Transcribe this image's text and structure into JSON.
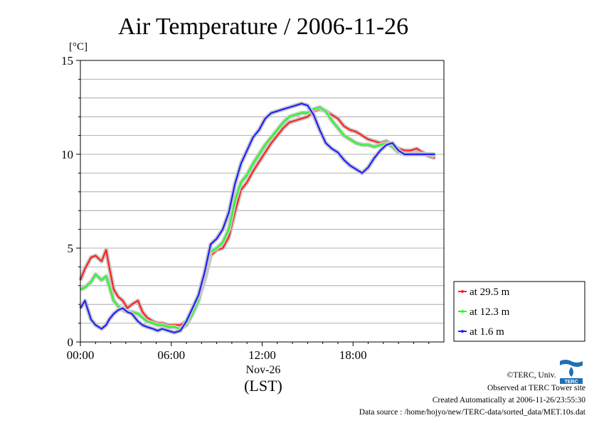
{
  "chart_data": {
    "type": "line",
    "title": "Air Temperature / 2006-11-26",
    "ylabel": "[°C]",
    "xlabel": "(LST)",
    "x_date_label": "Nov-26",
    "ylim": [
      0,
      15
    ],
    "yticks": [
      0,
      5,
      10,
      15
    ],
    "xlim": [
      "00:00",
      "24:00"
    ],
    "xticks": [
      "00:00",
      "06:00",
      "12:00",
      "18:00"
    ],
    "grid": true,
    "legend_position": "right",
    "x_unit": "hour",
    "series": [
      {
        "name": "at 29.5 m",
        "color": "#ff2020",
        "x": [
          0,
          0.3,
          0.7,
          1.0,
          1.4,
          1.7,
          1.9,
          2.2,
          2.5,
          2.8,
          3.1,
          3.4,
          3.8,
          4.1,
          4.4,
          4.8,
          5.1,
          5.4,
          5.8,
          6.2,
          6.6,
          7.0,
          7.4,
          7.8,
          8.2,
          8.6,
          9.0,
          9.4,
          9.8,
          10.2,
          10.6,
          11.0,
          11.4,
          11.8,
          12.2,
          12.6,
          13.0,
          13.4,
          13.8,
          14.2,
          14.6,
          15.0,
          15.4,
          15.8,
          16.2,
          16.6,
          17.0,
          17.4,
          17.8,
          18.2,
          18.6,
          19.0,
          19.4,
          19.8,
          20.2,
          20.6,
          21.0,
          21.4,
          21.8,
          22.2,
          22.6,
          23.0,
          23.4
        ],
        "values": [
          3.3,
          3.9,
          4.5,
          4.6,
          4.3,
          4.9,
          4.0,
          2.8,
          2.4,
          2.2,
          1.8,
          2.0,
          2.2,
          1.6,
          1.3,
          1.1,
          1.0,
          1.0,
          0.9,
          0.9,
          0.9,
          1.1,
          1.6,
          2.3,
          3.3,
          4.6,
          4.9,
          5.0,
          5.6,
          6.9,
          8.1,
          8.5,
          9.1,
          9.6,
          10.1,
          10.6,
          11.0,
          11.4,
          11.7,
          11.8,
          11.9,
          12.0,
          12.3,
          12.4,
          12.3,
          12.1,
          11.9,
          11.5,
          11.3,
          11.2,
          11.0,
          10.8,
          10.7,
          10.6,
          10.7,
          10.5,
          10.3,
          10.2,
          10.2,
          10.3,
          10.1,
          9.9,
          9.8
        ]
      },
      {
        "name": "at 12.3 m",
        "color": "#20ff20",
        "x": [
          0,
          0.3,
          0.7,
          1.0,
          1.4,
          1.7,
          1.9,
          2.2,
          2.5,
          2.8,
          3.1,
          3.4,
          3.8,
          4.1,
          4.4,
          4.8,
          5.1,
          5.4,
          5.8,
          6.2,
          6.6,
          7.0,
          7.4,
          7.8,
          8.2,
          8.6,
          9.0,
          9.4,
          9.8,
          10.2,
          10.6,
          11.0,
          11.4,
          11.8,
          12.2,
          12.6,
          13.0,
          13.4,
          13.8,
          14.2,
          14.6,
          15.0,
          15.4,
          15.8,
          16.2,
          16.6,
          17.0,
          17.4,
          17.8,
          18.2,
          18.6,
          19.0,
          19.4,
          19.8,
          20.2,
          20.6,
          21.0,
          21.4,
          21.8,
          22.2,
          22.6,
          23.0,
          23.4
        ],
        "values": [
          2.8,
          2.9,
          3.2,
          3.6,
          3.3,
          3.5,
          3.0,
          2.2,
          1.9,
          1.7,
          1.6,
          1.6,
          1.5,
          1.3,
          1.1,
          1.0,
          0.9,
          0.9,
          0.8,
          0.8,
          0.7,
          0.9,
          1.5,
          2.2,
          3.5,
          4.8,
          5.0,
          5.3,
          6.0,
          7.5,
          8.5,
          8.9,
          9.5,
          10.0,
          10.5,
          10.9,
          11.3,
          11.7,
          12.0,
          12.1,
          12.2,
          12.2,
          12.4,
          12.5,
          12.3,
          11.8,
          11.4,
          11.0,
          10.8,
          10.6,
          10.5,
          10.5,
          10.4,
          10.5,
          10.6,
          10.4,
          10.1,
          10.0,
          10.0,
          10.1,
          10.0,
          10.0,
          9.9
        ]
      },
      {
        "name": "at 1.6 m",
        "color": "#2020ff",
        "x": [
          0,
          0.3,
          0.7,
          1.0,
          1.4,
          1.7,
          1.9,
          2.2,
          2.5,
          2.8,
          3.1,
          3.4,
          3.8,
          4.1,
          4.4,
          4.8,
          5.1,
          5.4,
          5.8,
          6.2,
          6.6,
          7.0,
          7.4,
          7.8,
          8.2,
          8.6,
          9.0,
          9.4,
          9.8,
          10.2,
          10.6,
          11.0,
          11.4,
          11.8,
          12.2,
          12.6,
          13.0,
          13.4,
          13.8,
          14.2,
          14.6,
          15.0,
          15.4,
          15.8,
          16.2,
          16.6,
          17.0,
          17.4,
          17.8,
          18.2,
          18.6,
          19.0,
          19.4,
          19.8,
          20.2,
          20.6,
          21.0,
          21.4,
          21.8,
          22.2,
          22.6,
          23.0,
          23.4
        ],
        "values": [
          1.8,
          2.2,
          1.2,
          0.9,
          0.7,
          0.9,
          1.2,
          1.5,
          1.7,
          1.8,
          1.6,
          1.5,
          1.1,
          0.9,
          0.8,
          0.7,
          0.6,
          0.7,
          0.6,
          0.5,
          0.6,
          1.1,
          1.8,
          2.5,
          3.7,
          5.2,
          5.5,
          6.0,
          6.9,
          8.4,
          9.5,
          10.2,
          10.9,
          11.3,
          11.9,
          12.2,
          12.3,
          12.4,
          12.5,
          12.6,
          12.7,
          12.6,
          12.1,
          11.3,
          10.6,
          10.3,
          10.1,
          9.7,
          9.4,
          9.2,
          9.0,
          9.3,
          9.8,
          10.2,
          10.5,
          10.6,
          10.2,
          10.0,
          10.0,
          10.0,
          10.0,
          10.0,
          10.0
        ]
      }
    ]
  },
  "footer": {
    "copyright": "©TERC, Univ. Tsukuba",
    "observed": "Observed at TERC Tower site",
    "created": "Created Automatically at 2006-11-26/23:55:30",
    "source": "Data source : /home/hojyo/new/TERC-data/sorted_data/MET.10s.dat",
    "logo_text": "TERC"
  }
}
